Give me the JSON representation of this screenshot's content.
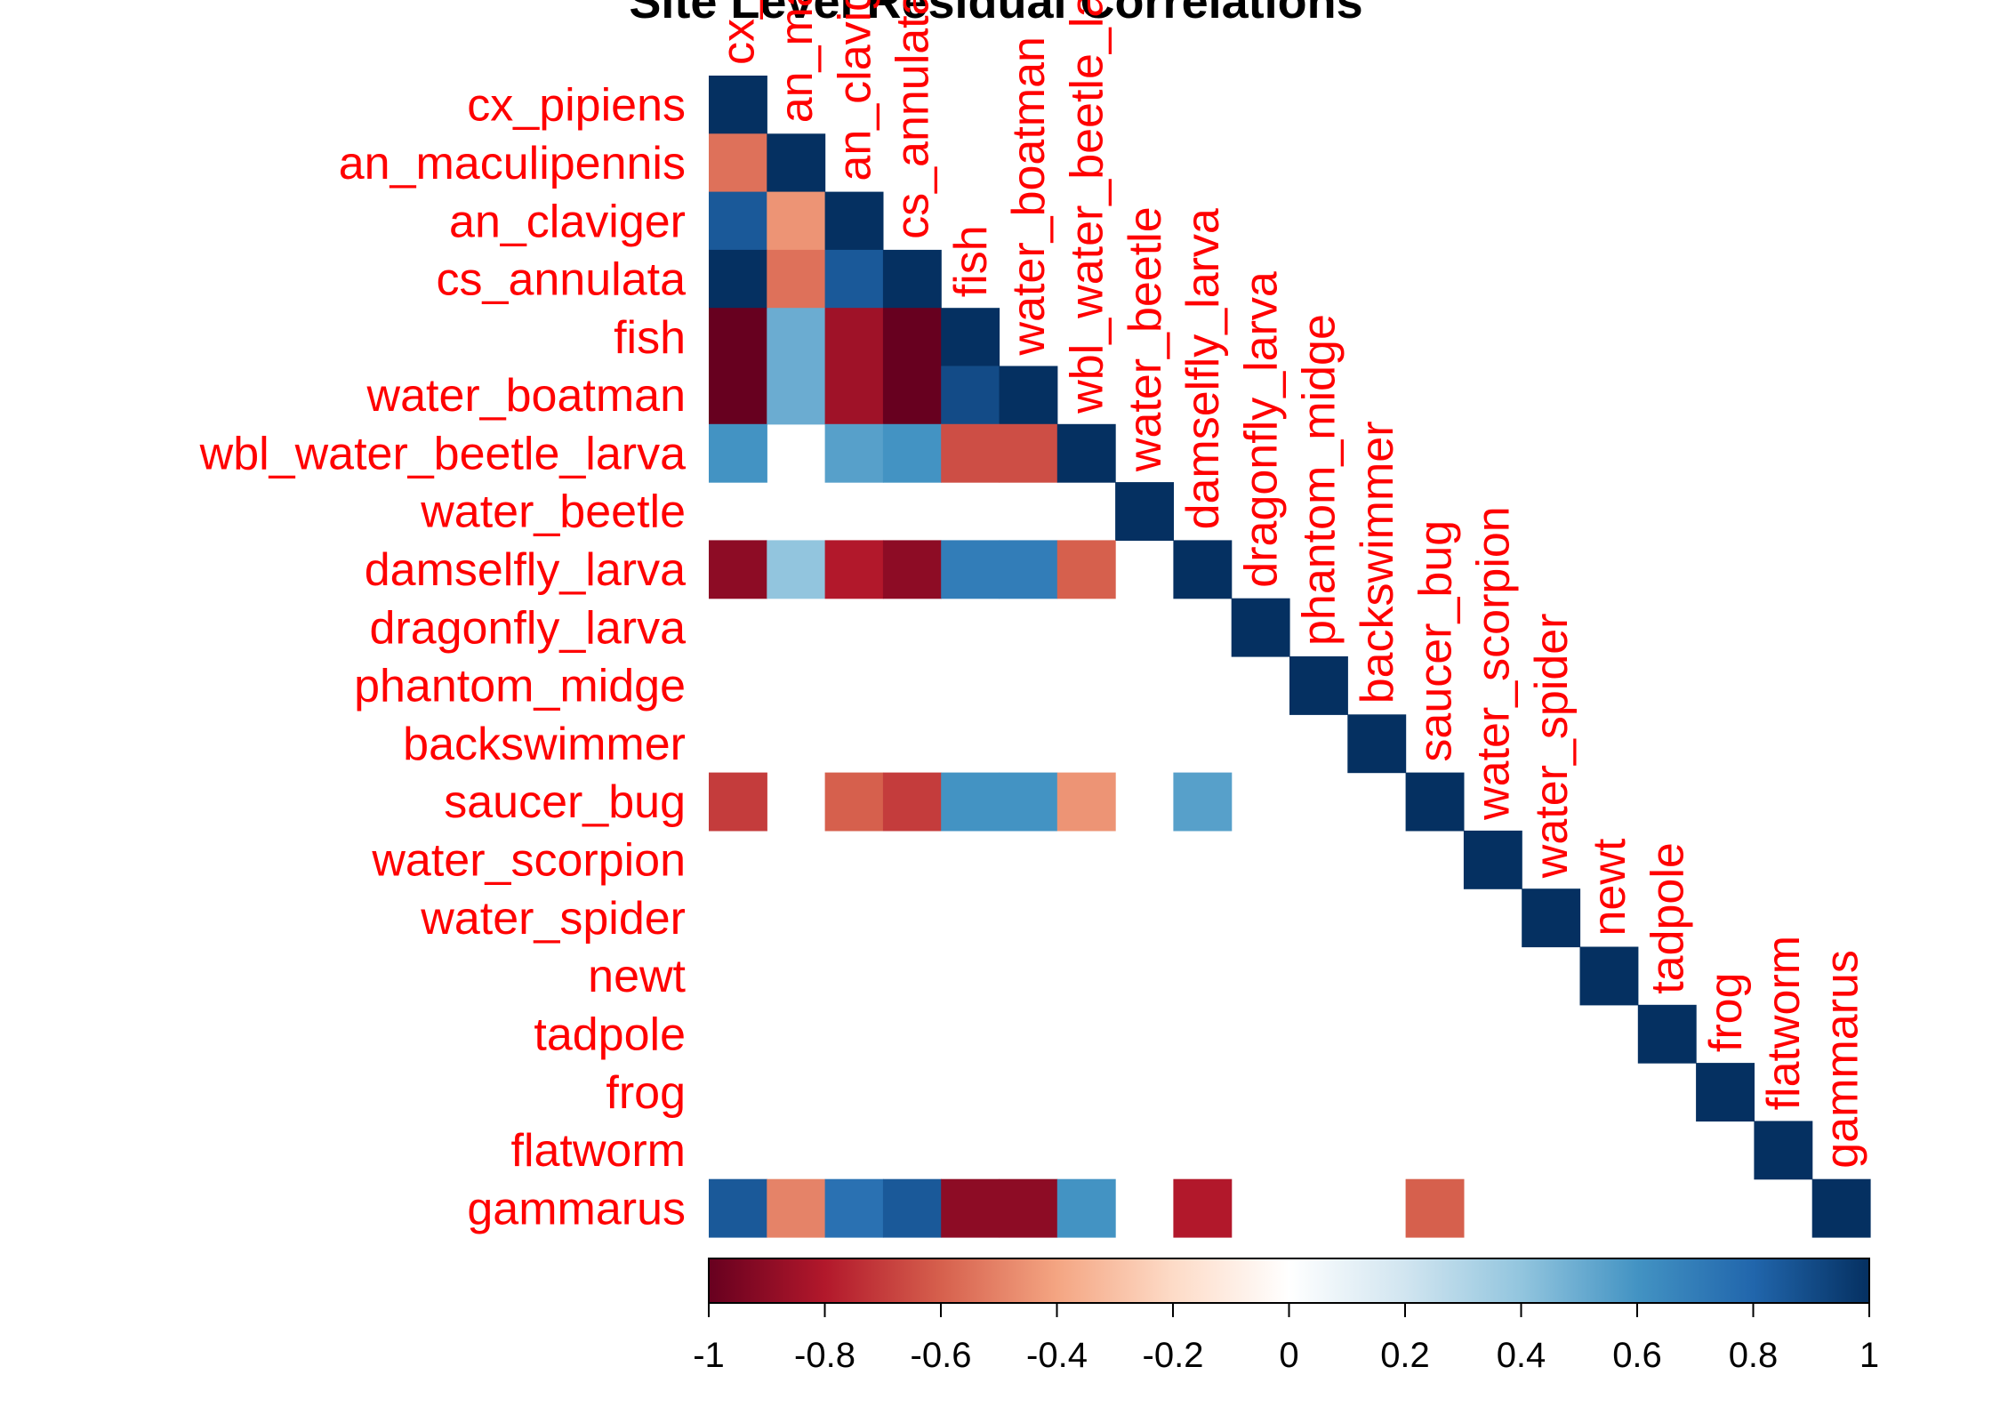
{
  "chart_data": {
    "type": "heatmap",
    "title": "Site Level Residual Correlations",
    "variables": [
      "cx_pipiens",
      "an_maculipennis",
      "an_claviger",
      "cs_annulata",
      "fish",
      "water_boatman",
      "wbl_water_beetle_larva",
      "water_beetle",
      "damselfly_larva",
      "dragonfly_larva",
      "phantom_midge",
      "backswimmer",
      "saucer_bug",
      "water_scorpion",
      "water_spider",
      "newt",
      "tadpole",
      "frog",
      "flatworm",
      "gammarus"
    ],
    "matrix_shape": "lower-triangular",
    "values": [
      [
        1
      ],
      [
        -0.55,
        1
      ],
      [
        0.85,
        -0.45,
        1
      ],
      [
        1.0,
        -0.55,
        0.85,
        1
      ],
      [
        -1.0,
        0.5,
        -0.85,
        -1.0,
        1
      ],
      [
        -1.0,
        0.5,
        -0.85,
        -1.0,
        0.9,
        1
      ],
      [
        0.6,
        0,
        0.55,
        0.6,
        -0.65,
        -0.65,
        1
      ],
      [
        0,
        0,
        0,
        0,
        0,
        0,
        0,
        1
      ],
      [
        -0.9,
        0.4,
        -0.8,
        -0.9,
        0.7,
        0.7,
        -0.6,
        0,
        1
      ],
      [
        0,
        0,
        0,
        0,
        0,
        0,
        0,
        0,
        0,
        1
      ],
      [
        0,
        0,
        0,
        0,
        0,
        0,
        0,
        0,
        0,
        0,
        1
      ],
      [
        0,
        0,
        0,
        0,
        0,
        0,
        0,
        0,
        0,
        0,
        0,
        1
      ],
      [
        -0.7,
        0,
        -0.6,
        -0.7,
        0.6,
        0.6,
        -0.45,
        0,
        0.55,
        0,
        0,
        0,
        1
      ],
      [
        0,
        0,
        0,
        0,
        0,
        0,
        0,
        0,
        0,
        0,
        0,
        0,
        0,
        1
      ],
      [
        0,
        0,
        0,
        0,
        0,
        0,
        0,
        0,
        0,
        0,
        0,
        0,
        0,
        0,
        1
      ],
      [
        0,
        0,
        0,
        0,
        0,
        0,
        0,
        0,
        0,
        0,
        0,
        0,
        0,
        0,
        0,
        1
      ],
      [
        0,
        0,
        0,
        0,
        0,
        0,
        0,
        0,
        0,
        0,
        0,
        0,
        0,
        0,
        0,
        0,
        1
      ],
      [
        0,
        0,
        0,
        0,
        0,
        0,
        0,
        0,
        0,
        0,
        0,
        0,
        0,
        0,
        0,
        0,
        0,
        1
      ],
      [
        0,
        0,
        0,
        0,
        0,
        0,
        0,
        0,
        0,
        0,
        0,
        0,
        0,
        0,
        0,
        0,
        0,
        0,
        1
      ],
      [
        0.85,
        -0.5,
        0.75,
        0.85,
        -0.9,
        -0.9,
        0.6,
        0,
        -0.8,
        0,
        0,
        0,
        -0.6,
        0,
        0,
        0,
        0,
        0,
        0,
        1
      ]
    ],
    "color_scale": {
      "range": [
        -1,
        1
      ],
      "colors": [
        "#67001f",
        "#b2182b",
        "#d6604d",
        "#f4a582",
        "#fddbc7",
        "#ffffff",
        "#d1e5f0",
        "#92c5de",
        "#4393c3",
        "#2166ac",
        "#053061"
      ],
      "ticks": [
        "-1",
        "-0.8",
        "-0.6",
        "-0.4",
        "-0.2",
        "0",
        "0.2",
        "0.4",
        "0.6",
        "0.8",
        "1"
      ]
    },
    "label_color": "#ff0000",
    "legend": "bottom"
  }
}
